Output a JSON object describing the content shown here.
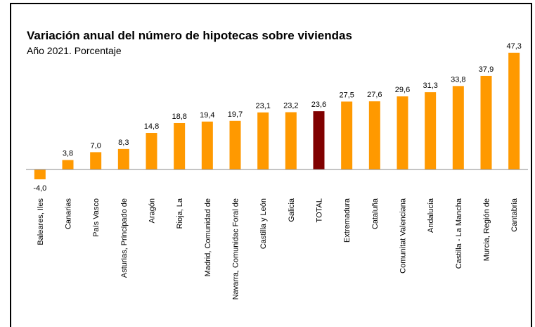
{
  "chart_data": {
    "type": "bar",
    "title": "Variación anual del número de hipotecas sobre viviendas",
    "subtitle": "Año 2021. Porcentaje",
    "categories": [
      "Baleares, Iles",
      "Canarias",
      "País Vasco",
      "Asturias, Principado de",
      "Aragón",
      "Rioja, La",
      "Madrid, Comunidad de",
      "Navarra, Comunidac Foral de",
      "Castilla y León",
      "Galicia",
      "TOTAL",
      "Extremadura",
      "Cataluña",
      "Comunitat Valenciana",
      "Andalucía",
      "Castilla - La Mancha",
      "Murcia, Región de",
      "Cantabria"
    ],
    "values": [
      -4.0,
      3.8,
      7.0,
      8.3,
      14.8,
      18.8,
      19.4,
      19.7,
      23.1,
      23.2,
      23.6,
      27.5,
      27.6,
      29.6,
      31.3,
      33.8,
      37.9,
      47.3
    ],
    "value_labels": [
      "-4,0",
      "3,8",
      "7,0",
      "8,3",
      "14,8",
      "18,8",
      "19,4",
      "19,7",
      "23,1",
      "23,2",
      "23,6",
      "27,5",
      "27,6",
      "29,6",
      "31,3",
      "33,8",
      "37,9",
      "47,3"
    ],
    "colors": [
      "#ff9900",
      "#ff9900",
      "#ff9900",
      "#ff9900",
      "#ff9900",
      "#ff9900",
      "#ff9900",
      "#ff9900",
      "#ff9900",
      "#ff9900",
      "#800000",
      "#ff9900",
      "#ff9900",
      "#ff9900",
      "#ff9900",
      "#ff9900",
      "#ff9900",
      "#ff9900"
    ],
    "ylim": [
      -4,
      48
    ]
  }
}
